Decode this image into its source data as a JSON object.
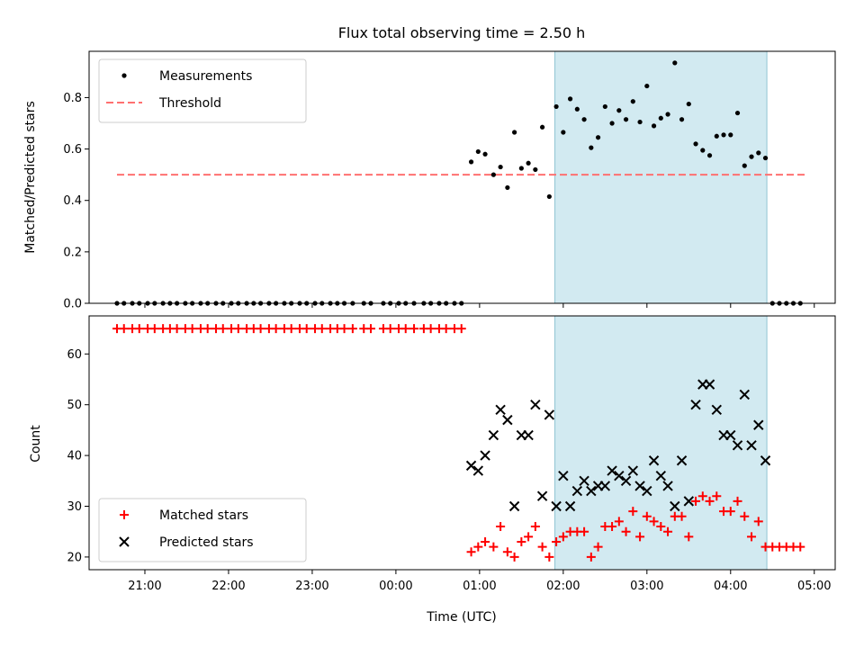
{
  "chart_data": [
    {
      "type": "scatter",
      "title": "Flux total observing time = 2.50 h",
      "xlabel": "",
      "ylabel": "Matched/Predicted stars",
      "ylim": [
        0.0,
        0.98
      ],
      "xlim": [
        "20:20",
        "05:15"
      ],
      "yticks": [
        "0.0",
        "0.2",
        "0.4",
        "0.6",
        "0.8"
      ],
      "xticks": [
        "21:00",
        "22:00",
        "23:00",
        "00:00",
        "01:00",
        "02:00",
        "03:00",
        "04:00",
        "05:00"
      ],
      "legend_position": "top-left",
      "observing_window": [
        "01:54",
        "04:26"
      ],
      "window_color": "#add8e6",
      "threshold": {
        "name": "Threshold",
        "value": 0.5,
        "x_range": [
          "20:40",
          "04:55"
        ],
        "color": "#ff7070"
      },
      "series": [
        {
          "name": "Measurements",
          "color": "#000000",
          "x": [
            "20:40",
            "20:45",
            "20:51",
            "20:56",
            "21:02",
            "21:07",
            "21:13",
            "21:18",
            "21:23",
            "21:29",
            "21:34",
            "21:40",
            "21:45",
            "21:51",
            "21:56",
            "22:02",
            "22:07",
            "22:13",
            "22:18",
            "22:23",
            "22:29",
            "22:34",
            "22:40",
            "22:45",
            "22:51",
            "22:56",
            "23:02",
            "23:07",
            "23:13",
            "23:18",
            "23:23",
            "23:29",
            "23:37",
            "23:42",
            "23:51",
            "23:56",
            "00:02",
            "00:07",
            "00:13",
            "00:20",
            "00:25",
            "00:31",
            "00:36",
            "00:42",
            "00:47",
            "00:54",
            "00:59",
            "01:04",
            "01:10",
            "01:15",
            "01:20",
            "01:25",
            "01:30",
            "01:35",
            "01:40",
            "01:45",
            "01:50",
            "01:55",
            "02:00",
            "02:05",
            "02:10",
            "02:15",
            "02:20",
            "02:25",
            "02:30",
            "02:35",
            "02:40",
            "02:45",
            "02:50",
            "02:55",
            "03:00",
            "03:05",
            "03:10",
            "03:15",
            "03:20",
            "03:25",
            "03:30",
            "03:35",
            "03:40",
            "03:45",
            "03:50",
            "03:55",
            "04:00",
            "04:05",
            "04:10",
            "04:15",
            "04:20",
            "04:25",
            "04:30",
            "04:35",
            "04:40",
            "04:45",
            "04:50"
          ],
          "y": [
            0,
            0,
            0,
            0,
            0,
            0,
            0,
            0,
            0,
            0,
            0,
            0,
            0,
            0,
            0,
            0,
            0,
            0,
            0,
            0,
            0,
            0,
            0,
            0,
            0,
            0,
            0,
            0,
            0,
            0,
            0,
            0,
            0,
            0,
            0,
            0,
            0,
            0,
            0,
            0,
            0,
            0,
            0,
            0,
            0,
            0.55,
            0.59,
            0.58,
            0.5,
            0.53,
            0.45,
            0.665,
            0.525,
            0.545,
            0.52,
            0.685,
            0.415,
            0.765,
            0.665,
            0.795,
            0.755,
            0.715,
            0.605,
            0.645,
            0.765,
            0.7,
            0.75,
            0.715,
            0.785,
            0.705,
            0.845,
            0.69,
            0.72,
            0.735,
            0.935,
            0.715,
            0.775,
            0.62,
            0.595,
            0.575,
            0.65,
            0.655,
            0.655,
            0.74,
            0.535,
            0.57,
            0.585,
            0.565,
            0,
            0,
            0,
            0,
            0
          ]
        }
      ]
    },
    {
      "type": "scatter",
      "title": "",
      "xlabel": "Time (UTC)",
      "ylabel": "Count",
      "ylim": [
        17.5,
        67.5
      ],
      "xlim": [
        "20:20",
        "05:15"
      ],
      "yticks": [
        "20",
        "30",
        "40",
        "50",
        "60"
      ],
      "xticks": [
        "21:00",
        "22:00",
        "23:00",
        "00:00",
        "01:00",
        "02:00",
        "03:00",
        "04:00",
        "05:00"
      ],
      "legend_position": "bottom-left",
      "observing_window": [
        "01:54",
        "04:26"
      ],
      "window_color": "#add8e6",
      "series": [
        {
          "name": "Matched stars",
          "color": "#ff0000",
          "x": [
            "20:40",
            "20:45",
            "20:51",
            "20:56",
            "21:02",
            "21:07",
            "21:13",
            "21:18",
            "21:23",
            "21:29",
            "21:34",
            "21:40",
            "21:45",
            "21:51",
            "21:56",
            "22:02",
            "22:07",
            "22:13",
            "22:18",
            "22:23",
            "22:29",
            "22:34",
            "22:40",
            "22:45",
            "22:51",
            "22:56",
            "23:02",
            "23:07",
            "23:13",
            "23:18",
            "23:23",
            "23:29",
            "23:37",
            "23:42",
            "23:51",
            "23:56",
            "00:02",
            "00:07",
            "00:13",
            "00:20",
            "00:25",
            "00:31",
            "00:36",
            "00:42",
            "00:47",
            "00:54",
            "00:59",
            "01:04",
            "01:10",
            "01:15",
            "01:20",
            "01:25",
            "01:30",
            "01:35",
            "01:40",
            "01:45",
            "01:50",
            "01:55",
            "02:00",
            "02:05",
            "02:10",
            "02:15",
            "02:20",
            "02:25",
            "02:30",
            "02:35",
            "02:40",
            "02:45",
            "02:50",
            "02:55",
            "03:00",
            "03:05",
            "03:10",
            "03:15",
            "03:20",
            "03:25",
            "03:30",
            "03:35",
            "03:40",
            "03:45",
            "03:50",
            "03:55",
            "04:00",
            "04:05",
            "04:10",
            "04:15",
            "04:20",
            "04:25",
            "04:30",
            "04:35",
            "04:40",
            "04:45",
            "04:50"
          ],
          "y": [
            65,
            65,
            65,
            65,
            65,
            65,
            65,
            65,
            65,
            65,
            65,
            65,
            65,
            65,
            65,
            65,
            65,
            65,
            65,
            65,
            65,
            65,
            65,
            65,
            65,
            65,
            65,
            65,
            65,
            65,
            65,
            65,
            65,
            65,
            65,
            65,
            65,
            65,
            65,
            65,
            65,
            65,
            65,
            65,
            65,
            21,
            22,
            23,
            22,
            26,
            21,
            20,
            23,
            24,
            26,
            22,
            20,
            23,
            24,
            25,
            25,
            25,
            20,
            22,
            26,
            26,
            27,
            25,
            29,
            24,
            28,
            27,
            26,
            25,
            28,
            28,
            24,
            31,
            32,
            31,
            32,
            29,
            29,
            31,
            28,
            24,
            27,
            22,
            22,
            22,
            22,
            22,
            22
          ]
        },
        {
          "name": "Predicted stars",
          "color": "#000000",
          "x": [
            "00:54",
            "00:59",
            "01:04",
            "01:10",
            "01:15",
            "01:20",
            "01:25",
            "01:30",
            "01:35",
            "01:40",
            "01:45",
            "01:50",
            "01:55",
            "02:00",
            "02:05",
            "02:10",
            "02:15",
            "02:20",
            "02:25",
            "02:30",
            "02:35",
            "02:40",
            "02:45",
            "02:50",
            "02:55",
            "03:00",
            "03:05",
            "03:10",
            "03:15",
            "03:20",
            "03:25",
            "03:30",
            "03:35",
            "03:40",
            "03:45",
            "03:50",
            "03:55",
            "04:00",
            "04:05",
            "04:10",
            "04:15",
            "04:20",
            "04:25"
          ],
          "y": [
            38,
            37,
            40,
            44,
            49,
            47,
            30,
            44,
            44,
            50,
            32,
            48,
            30,
            36,
            30,
            33,
            35,
            33,
            34,
            34,
            37,
            36,
            35,
            37,
            34,
            33,
            39,
            36,
            34,
            30,
            39,
            31,
            50,
            54,
            54,
            49,
            44,
            44,
            42,
            52,
            42,
            46,
            39
          ]
        }
      ]
    }
  ]
}
